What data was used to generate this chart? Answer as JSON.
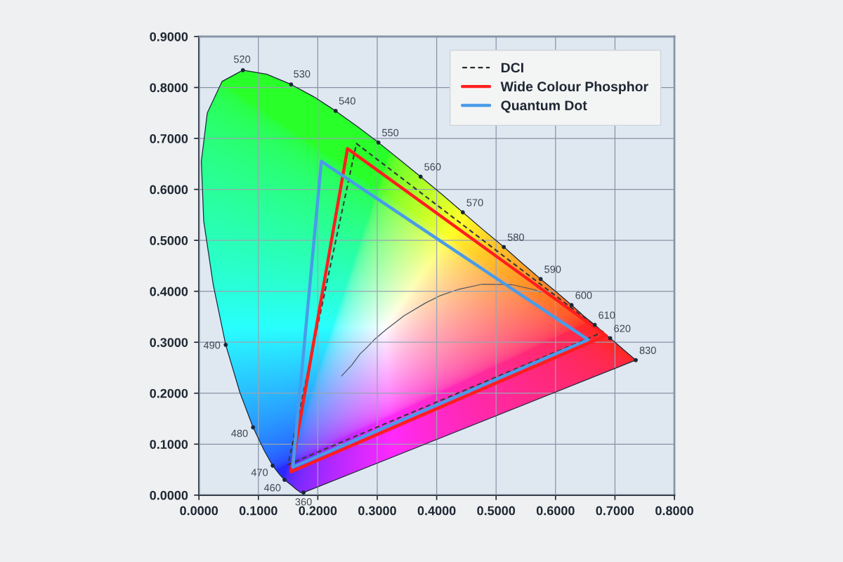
{
  "chart_data": {
    "type": "line",
    "xlim": [
      0,
      0.8
    ],
    "ylim": [
      0,
      0.9
    ],
    "xticks": [
      {
        "value": 0,
        "label": "0.0000"
      },
      {
        "value": 0.1,
        "label": "0.1000"
      },
      {
        "value": 0.2,
        "label": "0.2000"
      },
      {
        "value": 0.3,
        "label": "0.3000"
      },
      {
        "value": 0.4,
        "label": "0.4000"
      },
      {
        "value": 0.5,
        "label": "0.5000"
      },
      {
        "value": 0.6,
        "label": "0.6000"
      },
      {
        "value": 0.7,
        "label": "0.7000"
      },
      {
        "value": 0.8,
        "label": "0.8000"
      }
    ],
    "yticks": [
      {
        "value": 0,
        "label": "0.0000"
      },
      {
        "value": 0.1,
        "label": "0.1000"
      },
      {
        "value": 0.2,
        "label": "0.2000"
      },
      {
        "value": 0.3,
        "label": "0.3000"
      },
      {
        "value": 0.4,
        "label": "0.4000"
      },
      {
        "value": 0.5,
        "label": "0.5000"
      },
      {
        "value": 0.6,
        "label": "0.6000"
      },
      {
        "value": 0.7,
        "label": "0.7000"
      },
      {
        "value": 0.8,
        "label": "0.8000"
      },
      {
        "value": 0.9,
        "label": "0.9000"
      }
    ],
    "grid": true,
    "legend": "top right",
    "series": [
      {
        "type": "area",
        "color": "#1b2838",
        "x": [
          0.176,
          0.173,
          0.171,
          0.169,
          0.164,
          0.157,
          0.144,
          0.136,
          0.124,
          0.11,
          0.091,
          0.069,
          0.045,
          0.024,
          0.008,
          0.004,
          0.014,
          0.039,
          0.074,
          0.114,
          0.155,
          0.193,
          0.23,
          0.266,
          0.302,
          0.337,
          0.373,
          0.409,
          0.444,
          0.479,
          0.513,
          0.545,
          0.575,
          0.603,
          0.627,
          0.648,
          0.666,
          0.692,
          0.708,
          0.719,
          0.73,
          0.735
        ],
        "values": [
          0.005,
          0.005,
          0.005,
          0.007,
          0.011,
          0.018,
          0.03,
          0.04,
          0.058,
          0.087,
          0.133,
          0.201,
          0.295,
          0.413,
          0.538,
          0.655,
          0.75,
          0.812,
          0.834,
          0.826,
          0.806,
          0.782,
          0.754,
          0.724,
          0.692,
          0.659,
          0.625,
          0.59,
          0.555,
          0.52,
          0.487,
          0.454,
          0.424,
          0.397,
          0.373,
          0.351,
          0.334,
          0.308,
          0.292,
          0.281,
          0.27,
          0.265
        ]
      },
      {
        "color": "#2a3540",
        "x": [
          0.24,
          0.257,
          0.271,
          0.281,
          0.295,
          0.314,
          0.345,
          0.381,
          0.405,
          0.437,
          0.477,
          0.527,
          0.565,
          0.575
        ],
        "values": [
          0.234,
          0.255,
          0.277,
          0.288,
          0.305,
          0.324,
          0.352,
          0.377,
          0.391,
          0.404,
          0.414,
          0.413,
          0.403,
          0.398
        ]
      },
      {
        "name": "DCI",
        "color": "#111111",
        "line_style": "dashed",
        "x": [
          0.265,
          0.68,
          0.15,
          0.265
        ],
        "values": [
          0.69,
          0.32,
          0.06,
          0.69
        ]
      },
      {
        "name": "Wide Colour Phosphor",
        "color": "#ff1e1e",
        "x": [
          0.25,
          0.685,
          0.155,
          0.25
        ],
        "values": [
          0.68,
          0.313,
          0.046,
          0.68
        ]
      },
      {
        "name": "Quantum Dot",
        "color": "#4a9be8",
        "x": [
          0.206,
          0.655,
          0.158,
          0.206
        ],
        "values": [
          0.655,
          0.305,
          0.055,
          0.655
        ]
      }
    ],
    "annotations": [
      {
        "text": "360",
        "x": 0.176,
        "y": 0.005
      },
      {
        "text": "460",
        "x": 0.144,
        "y": 0.03
      },
      {
        "text": "470",
        "x": 0.124,
        "y": 0.058
      },
      {
        "text": "480",
        "x": 0.091,
        "y": 0.133
      },
      {
        "text": "490",
        "x": 0.045,
        "y": 0.295
      },
      {
        "text": "520",
        "x": 0.074,
        "y": 0.834
      },
      {
        "text": "530",
        "x": 0.155,
        "y": 0.806
      },
      {
        "text": "540",
        "x": 0.23,
        "y": 0.754
      },
      {
        "text": "550",
        "x": 0.302,
        "y": 0.692
      },
      {
        "text": "560",
        "x": 0.373,
        "y": 0.625
      },
      {
        "text": "570",
        "x": 0.444,
        "y": 0.555
      },
      {
        "text": "580",
        "x": 0.513,
        "y": 0.487
      },
      {
        "text": "590",
        "x": 0.575,
        "y": 0.424
      },
      {
        "text": "600",
        "x": 0.627,
        "y": 0.373
      },
      {
        "text": "610",
        "x": 0.666,
        "y": 0.334
      },
      {
        "text": "620",
        "x": 0.692,
        "y": 0.308
      },
      {
        "text": "830",
        "x": 0.735,
        "y": 0.265
      }
    ]
  }
}
